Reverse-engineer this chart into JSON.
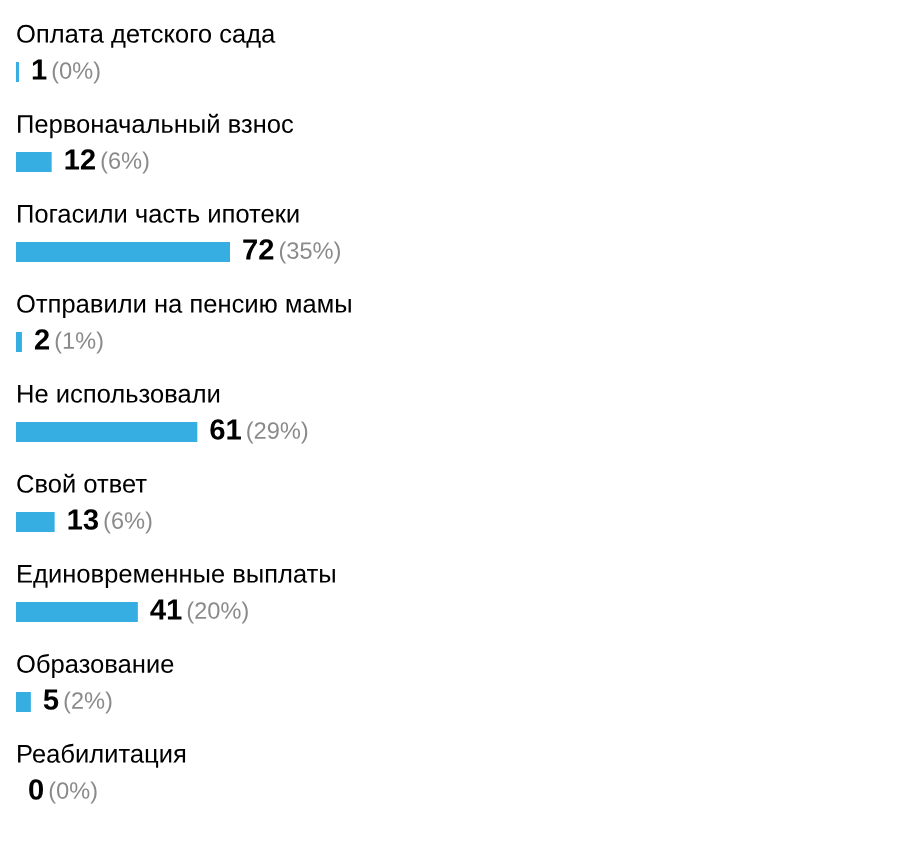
{
  "chart_data": {
    "type": "bar",
    "orientation": "horizontal",
    "categories": [
      "Оплата детского сада",
      "Первоначальный взнос",
      "Погасили часть ипотеки",
      "Отправили на пенсию мамы",
      "Не использовали",
      "Свой ответ",
      "Единовременные выплаты",
      "Образование",
      "Реабилитация"
    ],
    "values": [
      1,
      12,
      72,
      2,
      61,
      13,
      41,
      5,
      0
    ],
    "color": "#36aee2",
    "value_labels": [
      "1 (0%)",
      "12 (6%)",
      "72 (35%)",
      "2 (1%)",
      "61 (29%)",
      "13 (6%)",
      "41 (20%)",
      "5 (2%)",
      "0 (0%)"
    ]
  }
}
